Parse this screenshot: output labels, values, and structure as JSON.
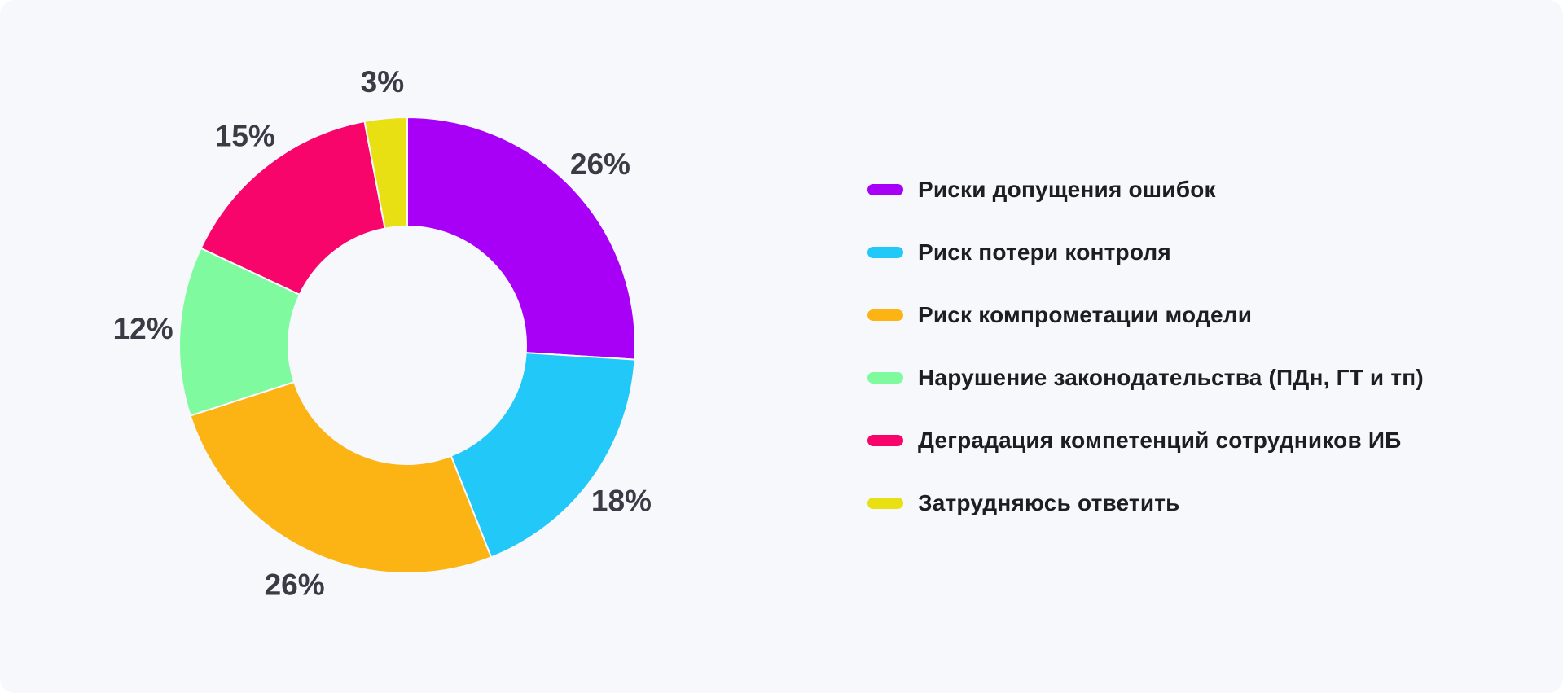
{
  "background_color": "#F6F8FC",
  "chart_data": {
    "type": "pie",
    "variant": "donut",
    "title": "",
    "start_angle_deg": 0,
    "direction": "clockwise",
    "unit": "%",
    "categories": [
      "Риски допущения ошибок",
      "Риск потери контроля",
      "Риск компрометации модели",
      "Нарушение законодательства (ПДн, ГТ и тп)",
      "Деградация компетенций сотрудников ИБ",
      "Затрудняюсь ответить"
    ],
    "values": [
      26,
      18,
      26,
      12,
      15,
      3
    ],
    "data_labels": [
      "26%",
      "18%",
      "26%",
      "12%",
      "15%",
      "3%"
    ],
    "colors": [
      "#A800F7",
      "#22C8F7",
      "#FCB414",
      "#7FFA9E",
      "#F8056B",
      "#E8E012"
    ],
    "value_label_color": "#3B3B45",
    "legend_text_color": "#1D1D24",
    "legend_position": "right",
    "donut_inner_ratio": 0.52
  }
}
